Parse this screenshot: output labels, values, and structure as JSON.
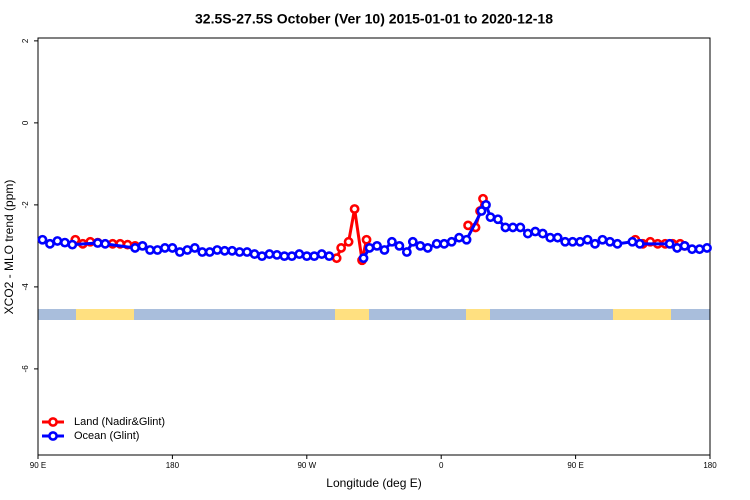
{
  "chart_data": {
    "type": "line",
    "title": "32.5S-27.5S October (Ver 10)   2015-01-01 to 2020-12-18",
    "x_label": "Longitude (deg E)",
    "y_label": "XCO2 - MLO trend (ppm)",
    "xlim": [
      90,
      540
    ],
    "xticks": [
      {
        "value": 90,
        "label": "90 E"
      },
      180,
      {
        "value": 270,
        "label": "90 W"
      },
      {
        "value": 360,
        "label": "0"
      },
      {
        "value": 450,
        "label": "90 E"
      },
      {
        "value": 540,
        "label": "180"
      }
    ],
    "ylim": [
      -8.1,
      2.07
    ],
    "yticks": [
      -6,
      -4,
      -2,
      0,
      2
    ],
    "legend": "bottom-left",
    "series": [
      {
        "name": "Land (Nadir&Glint)",
        "color": "#ff0000",
        "x": [
          115,
          120,
          125,
          130,
          140,
          145,
          150,
          155,
          null,
          290,
          293,
          298,
          302,
          307,
          310,
          null,
          378,
          383,
          386,
          388,
          null,
          490,
          495,
          500,
          505,
          510,
          515,
          520,
          523
        ],
        "values": [
          -2.85,
          -2.95,
          -2.9,
          -2.92,
          -2.95,
          -2.95,
          -2.97,
          -3.0,
          null,
          -3.3,
          -3.05,
          -2.9,
          -2.1,
          -3.35,
          -2.85,
          null,
          -2.5,
          -2.55,
          -2.15,
          -1.85,
          null,
          -2.85,
          -2.95,
          -2.9,
          -2.95,
          -2.95,
          -2.95,
          -2.95,
          -3.0
        ]
      },
      {
        "name": "Ocean (Glint)",
        "color": "#0000ff",
        "x": [
          93,
          98,
          103,
          108,
          113,
          130,
          135,
          155,
          160,
          165,
          170,
          175,
          180,
          185,
          190,
          195,
          200,
          205,
          210,
          215,
          220,
          225,
          230,
          235,
          240,
          245,
          250,
          255,
          260,
          265,
          270,
          275,
          280,
          285,
          null,
          308,
          312,
          317,
          322,
          327,
          332,
          337,
          341,
          346,
          351,
          357,
          362,
          367,
          372,
          377,
          387,
          390,
          393,
          398,
          403,
          408,
          413,
          418,
          423,
          428,
          433,
          438,
          443,
          448,
          453,
          458,
          463,
          468,
          473,
          478,
          488,
          493,
          513,
          518,
          523,
          528,
          533,
          538
        ],
        "values": [
          -2.85,
          -2.95,
          -2.88,
          -2.92,
          -2.97,
          -2.93,
          -2.95,
          -3.05,
          -3.0,
          -3.1,
          -3.1,
          -3.05,
          -3.05,
          -3.15,
          -3.1,
          -3.05,
          -3.15,
          -3.15,
          -3.1,
          -3.12,
          -3.12,
          -3.15,
          -3.15,
          -3.2,
          -3.25,
          -3.2,
          -3.22,
          -3.25,
          -3.25,
          -3.2,
          -3.25,
          -3.25,
          -3.2,
          -3.25,
          null,
          -3.3,
          -3.05,
          -3.0,
          -3.1,
          -2.9,
          -3.0,
          -3.15,
          -2.9,
          -3.0,
          -3.05,
          -2.95,
          -2.95,
          -2.9,
          -2.8,
          -2.85,
          -2.15,
          -2.0,
          -2.3,
          -2.35,
          -2.55,
          -2.55,
          -2.55,
          -2.7,
          -2.65,
          -2.7,
          -2.8,
          -2.8,
          -2.9,
          -2.9,
          -2.9,
          -2.85,
          -2.95,
          -2.85,
          -2.9,
          -2.95,
          -2.9,
          -2.95,
          -2.95,
          -3.05,
          -3.0,
          -3.08,
          -3.08,
          -3.05
        ]
      }
    ]
  }
}
